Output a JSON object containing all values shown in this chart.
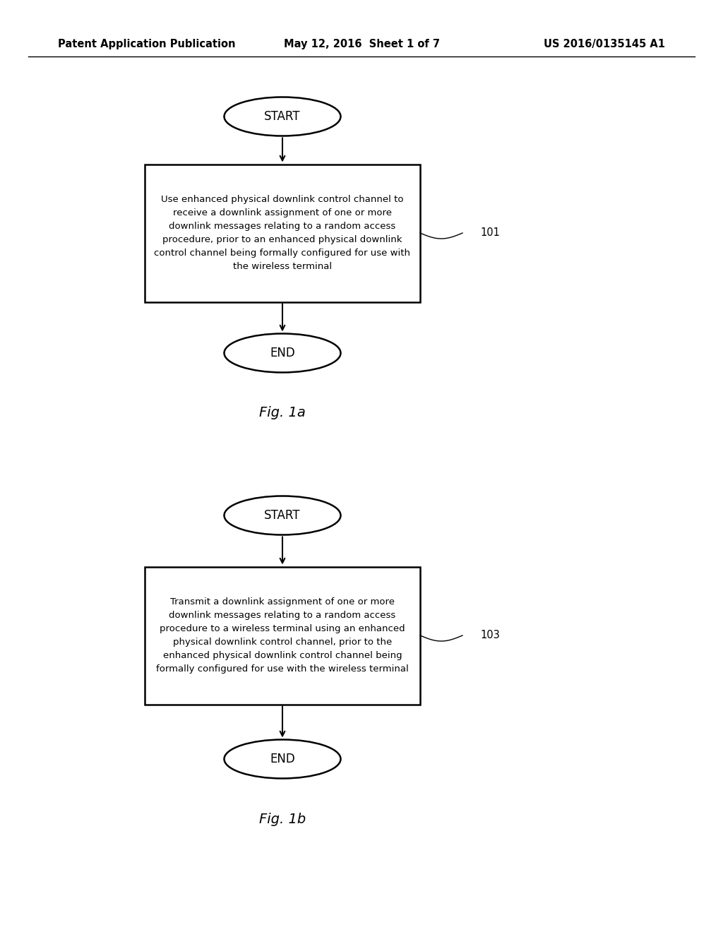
{
  "background_color": "#ffffff",
  "header_left": "Patent Application Publication",
  "header_center": "May 12, 2016  Sheet 1 of 7",
  "header_right": "US 2016/0135145 A1",
  "header_fontsize": 10.5,
  "fig1a_label": "Fig. 1a",
  "fig1b_label": "Fig. 1b",
  "start_label": "START",
  "end_label": "END",
  "box1_text": "Use enhanced physical downlink control channel to\nreceive a downlink assignment of one or more\ndownlink messages relating to a random access\nprocedure, prior to an enhanced physical downlink\ncontrol channel being formally configured for use with\nthe wireless terminal",
  "box1_ref": "101",
  "box2_text": "Transmit a downlink assignment of one or more\ndownlink messages relating to a random access\nprocedure to a wireless terminal using an enhanced\nphysical downlink control channel, prior to the\nenhanced physical downlink control channel being\nformally configured for use with the wireless terminal",
  "box2_ref": "103",
  "text_color": "#000000"
}
